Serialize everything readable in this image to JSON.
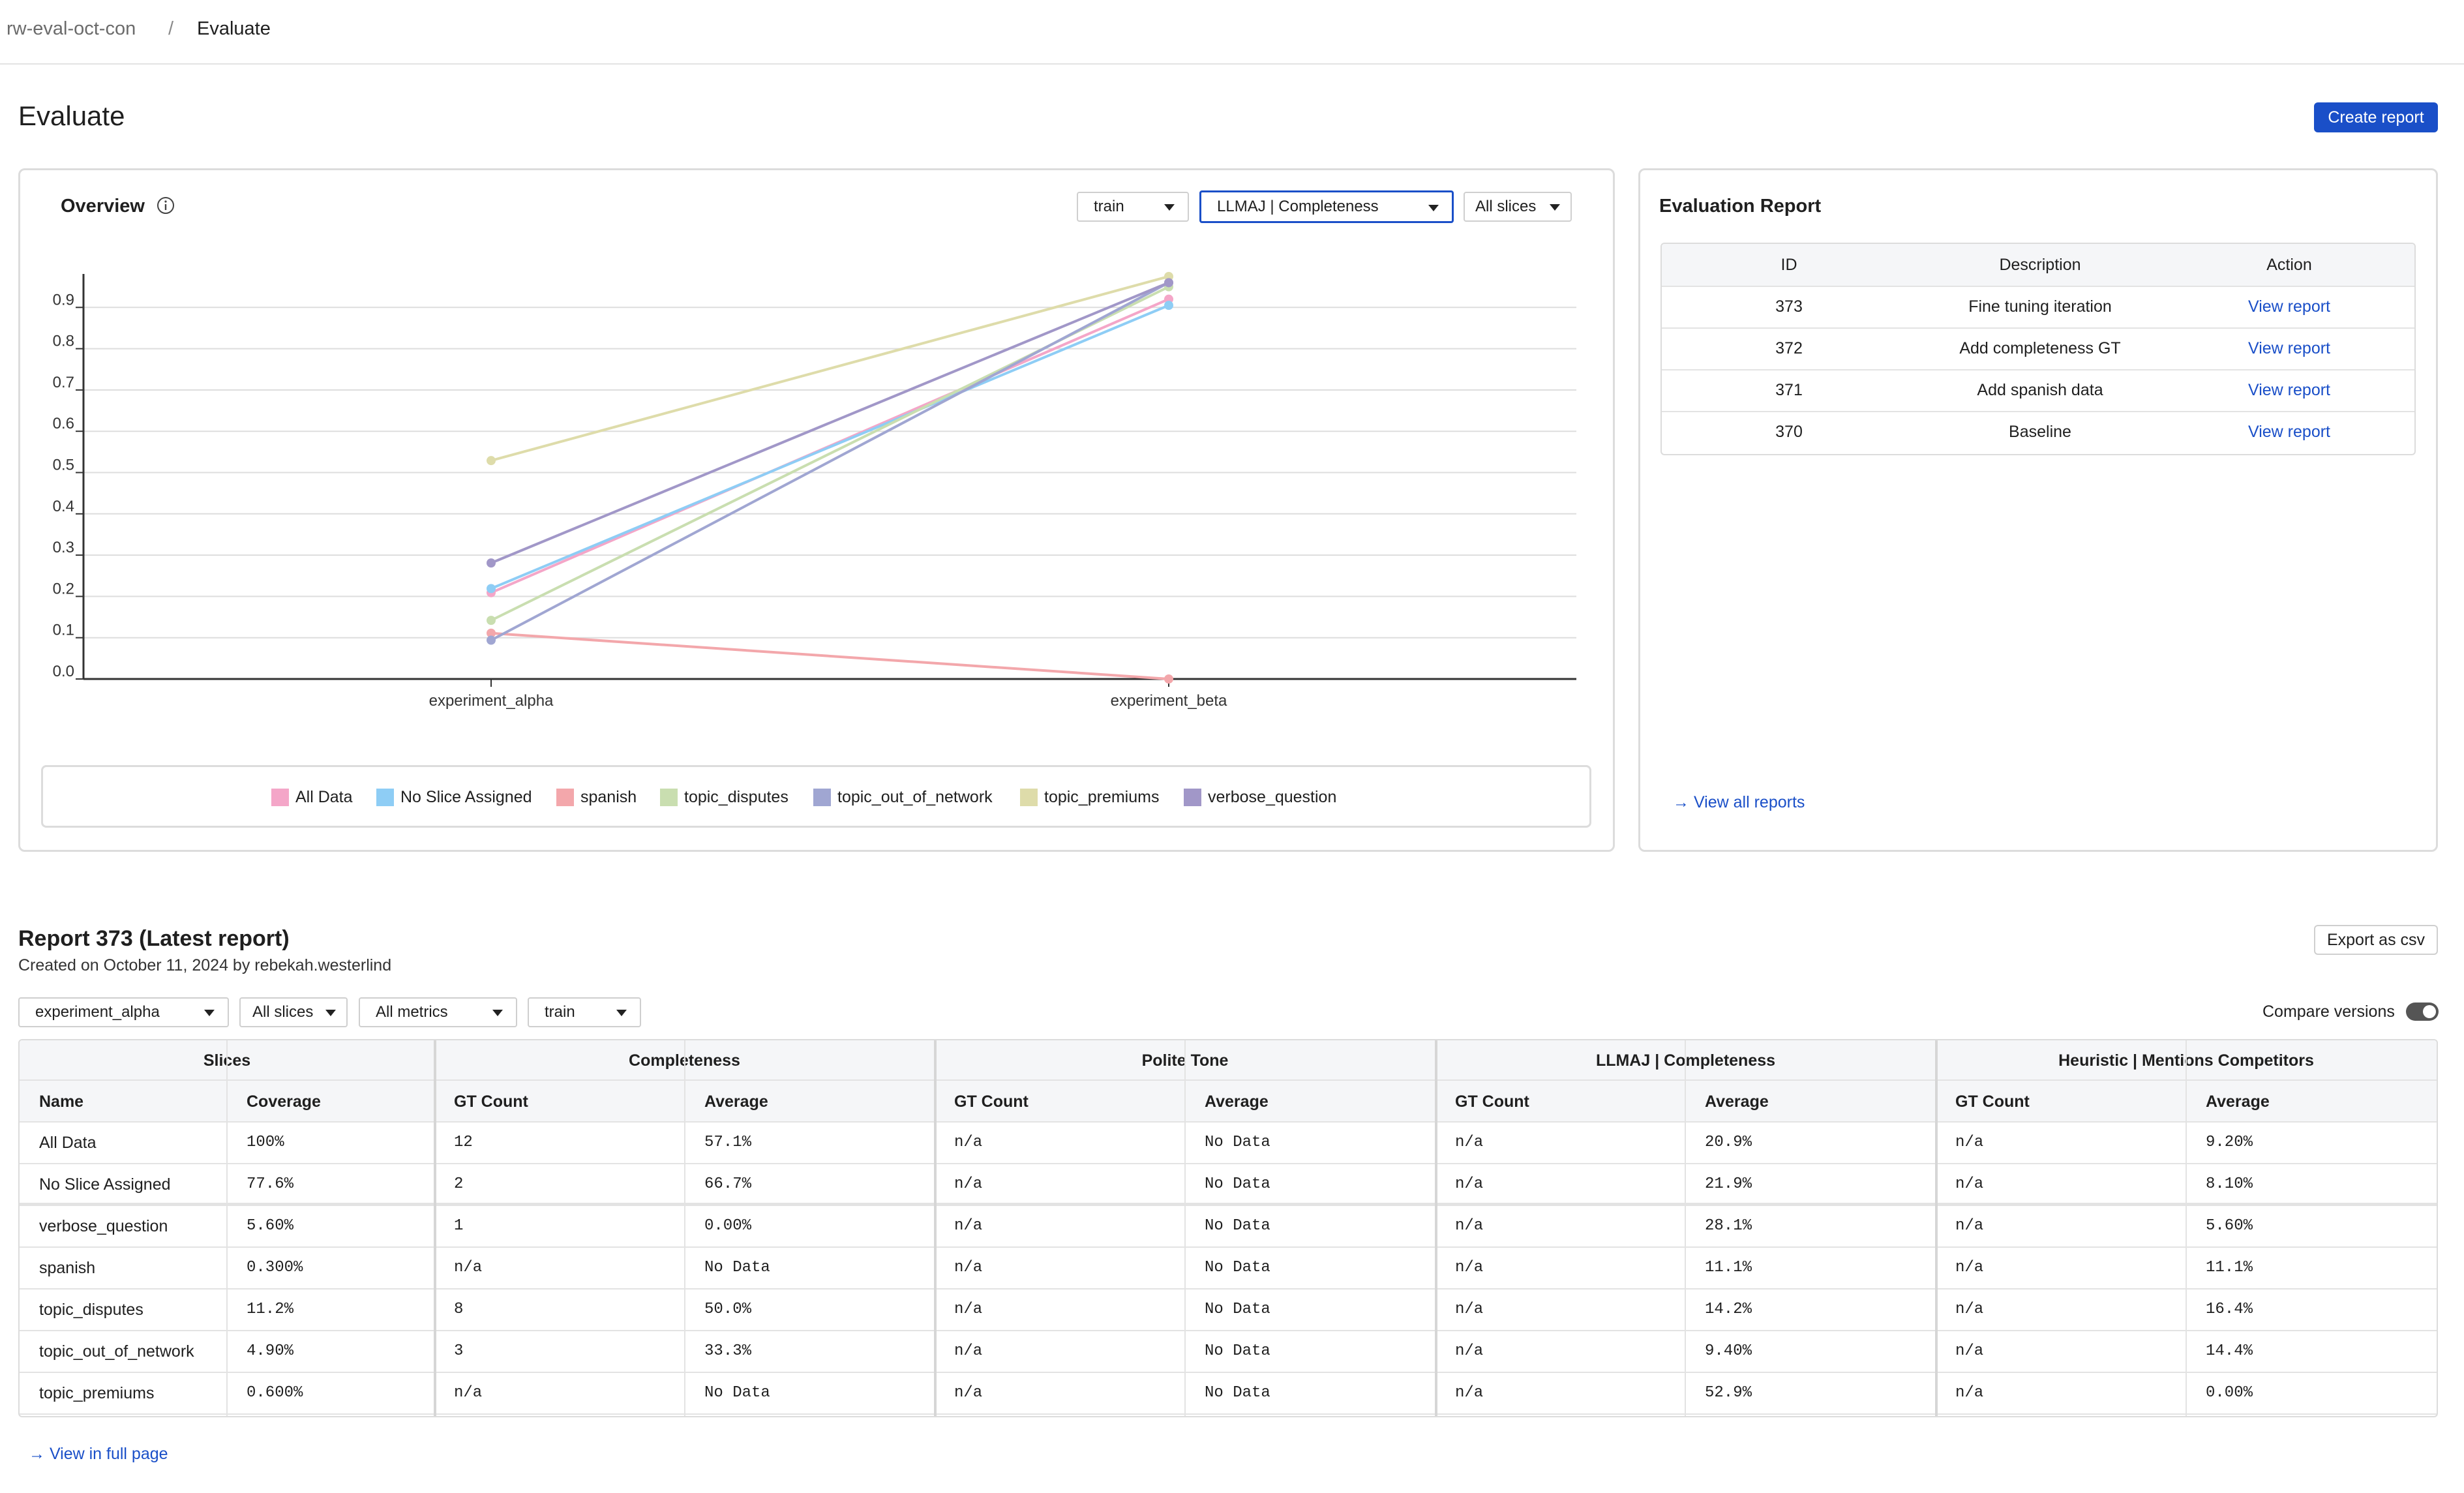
{
  "breadcrumb": {
    "project": "rw-eval-oct-con",
    "separator": "/",
    "current": "Evaluate"
  },
  "page": {
    "title": "Evaluate",
    "create_report_label": "Create report"
  },
  "overview": {
    "title": "Overview",
    "split_select": "train",
    "metric_select": "LLMAJ | Completeness",
    "slice_select": "All slices"
  },
  "chart_data": {
    "type": "line",
    "categories": [
      "experiment_alpha",
      "experiment_beta"
    ],
    "ylim": [
      0,
      0.97
    ],
    "yticks": [
      "0.0",
      "0.1",
      "0.2",
      "0.3",
      "0.4",
      "0.5",
      "0.6",
      "0.7",
      "0.8",
      "0.9"
    ],
    "series": [
      {
        "name": "All Data",
        "color": "#f4a6c8",
        "values": [
          0.209,
          0.92
        ]
      },
      {
        "name": "No Slice Assigned",
        "color": "#8ecdf5",
        "values": [
          0.219,
          0.905
        ]
      },
      {
        "name": "spanish",
        "color": "#f3a7ab",
        "values": [
          0.111,
          0.0
        ]
      },
      {
        "name": "topic_disputes",
        "color": "#c9deb0",
        "values": [
          0.142,
          0.95
        ]
      },
      {
        "name": "topic_out_of_network",
        "color": "#a0a6d2",
        "values": [
          0.094,
          0.96
        ]
      },
      {
        "name": "topic_premiums",
        "color": "#dedcaa",
        "values": [
          0.529,
          0.975
        ]
      },
      {
        "name": "verbose_question",
        "color": "#a197c8",
        "values": [
          0.281,
          0.96
        ]
      }
    ]
  },
  "evaluation_report": {
    "title": "Evaluation Report",
    "columns": [
      "ID",
      "Description",
      "Action"
    ],
    "rows": [
      {
        "id": "373",
        "description": "Fine tuning iteration",
        "action": "View report"
      },
      {
        "id": "372",
        "description": "Add completeness GT",
        "action": "View report"
      },
      {
        "id": "371",
        "description": "Add spanish data",
        "action": "View report"
      },
      {
        "id": "370",
        "description": "Baseline",
        "action": "View report"
      }
    ],
    "view_all": "→ View all reports"
  },
  "report": {
    "title": "Report 373 (Latest report)",
    "subtitle": "Created on October 11, 2024 by rebekah.westerlind",
    "export_label": "Export as csv",
    "filters": {
      "experiment": "experiment_alpha",
      "slices": "All slices",
      "metrics": "All metrics",
      "split": "train"
    },
    "compare_label": "Compare versions",
    "groups": [
      "Slices",
      "Completeness",
      "Polite Tone",
      "LLMAJ | Completeness",
      "Heuristic | Mentions Competitors"
    ],
    "subheaders": [
      "Name",
      "Coverage",
      "GT Count",
      "Average",
      "GT Count",
      "Average",
      "GT Count",
      "Average",
      "GT Count",
      "Average"
    ],
    "rows": [
      [
        "All Data",
        "100%",
        "12",
        "57.1%",
        "n/a",
        "No Data",
        "n/a",
        "20.9%",
        "n/a",
        "9.20%"
      ],
      [
        "No Slice Assigned",
        "77.6%",
        "2",
        "66.7%",
        "n/a",
        "No Data",
        "n/a",
        "21.9%",
        "n/a",
        "8.10%"
      ],
      [
        "verbose_question",
        "5.60%",
        "1",
        "0.00%",
        "n/a",
        "No Data",
        "n/a",
        "28.1%",
        "n/a",
        "5.60%"
      ],
      [
        "spanish",
        "0.300%",
        "n/a",
        "No Data",
        "n/a",
        "No Data",
        "n/a",
        "11.1%",
        "n/a",
        "11.1%"
      ],
      [
        "topic_disputes",
        "11.2%",
        "8",
        "50.0%",
        "n/a",
        "No Data",
        "n/a",
        "14.2%",
        "n/a",
        "16.4%"
      ],
      [
        "topic_out_of_network",
        "4.90%",
        "3",
        "33.3%",
        "n/a",
        "No Data",
        "n/a",
        "9.40%",
        "n/a",
        "14.4%"
      ],
      [
        "topic_premiums",
        "0.600%",
        "n/a",
        "No Data",
        "n/a",
        "No Data",
        "n/a",
        "52.9%",
        "n/a",
        "0.00%"
      ]
    ],
    "view_full": "→ View in full page"
  }
}
